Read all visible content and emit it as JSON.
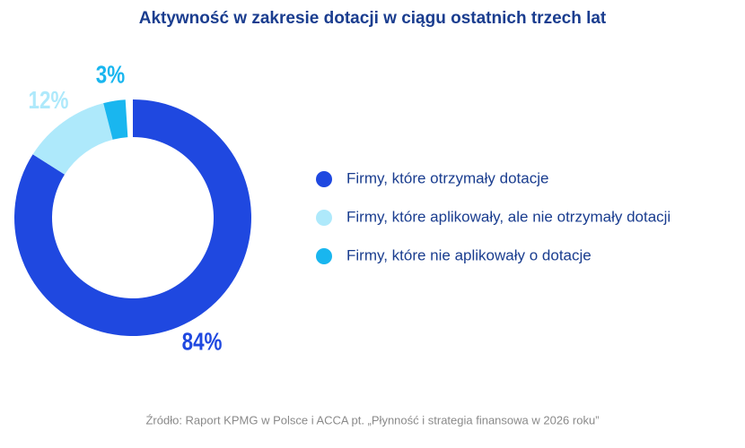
{
  "chart_data": {
    "type": "donut",
    "title": "Aktywność w zakresie dotacji w ciągu ostatnich trzech lat",
    "categories": [
      "Firmy, które otrzymały dotacje",
      "Firmy, które aplikowały, ale nie otrzymały dotacji",
      "Firmy, które nie aplikowały o dotacje"
    ],
    "values": [
      84,
      12,
      3
    ],
    "value_labels": [
      "84%",
      "12%",
      "3%"
    ],
    "colors": [
      "#1f48e0",
      "#aee9fb",
      "#19b6ef"
    ],
    "legend": "right",
    "source": "Źródło: Raport KPMG w Polsce i ACCA pt. „Płynność i strategia finansowa w 2026 roku”"
  }
}
